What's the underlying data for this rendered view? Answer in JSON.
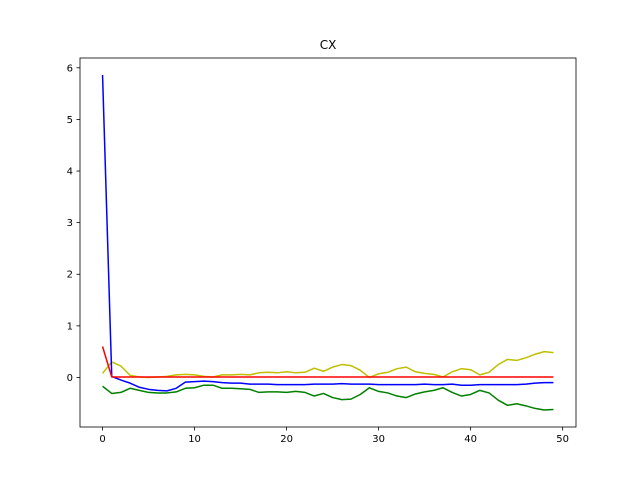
{
  "chart_data": {
    "type": "line",
    "title": "CX",
    "xlabel": "",
    "ylabel": "",
    "xlim": [
      -2.45,
      51.45
    ],
    "ylim": [
      -0.96,
      6.19
    ],
    "x_ticks": [
      0,
      10,
      20,
      30,
      40,
      50
    ],
    "y_ticks": [
      0,
      1,
      2,
      3,
      4,
      5,
      6
    ],
    "grid": false,
    "series": [
      {
        "color": "#bfbf00",
        "x": [
          0,
          1,
          2,
          3,
          4,
          5,
          6,
          7,
          8,
          9,
          10,
          11,
          12,
          13,
          14,
          15,
          16,
          17,
          18,
          19,
          20,
          21,
          22,
          23,
          24,
          25,
          26,
          27,
          28,
          29,
          30,
          31,
          32,
          33,
          34,
          35,
          36,
          37,
          38,
          39,
          40,
          41,
          42,
          43,
          44,
          45,
          46,
          47,
          48,
          49
        ],
        "values": [
          0.08,
          0.3,
          0.22,
          0.04,
          0.01,
          0.0,
          0.01,
          0.02,
          0.05,
          0.06,
          0.05,
          0.02,
          0.01,
          0.05,
          0.05,
          0.06,
          0.05,
          0.09,
          0.1,
          0.09,
          0.11,
          0.09,
          0.1,
          0.18,
          0.12,
          0.2,
          0.25,
          0.23,
          0.14,
          0.0,
          0.07,
          0.1,
          0.17,
          0.2,
          0.11,
          0.08,
          0.06,
          0.01,
          0.11,
          0.17,
          0.15,
          0.05,
          0.1,
          0.25,
          0.35,
          0.33,
          0.38,
          0.45,
          0.5,
          0.48
        ]
      },
      {
        "color": "#008000",
        "x": [
          0,
          1,
          2,
          3,
          4,
          5,
          6,
          7,
          8,
          9,
          10,
          11,
          12,
          13,
          14,
          15,
          16,
          17,
          18,
          19,
          20,
          21,
          22,
          23,
          24,
          25,
          26,
          27,
          28,
          29,
          30,
          31,
          32,
          33,
          34,
          35,
          36,
          37,
          38,
          39,
          40,
          41,
          42,
          43,
          44,
          45,
          46,
          47,
          48,
          49
        ],
        "values": [
          -0.17,
          -0.31,
          -0.29,
          -0.21,
          -0.25,
          -0.29,
          -0.3,
          -0.3,
          -0.28,
          -0.21,
          -0.2,
          -0.15,
          -0.15,
          -0.21,
          -0.21,
          -0.22,
          -0.23,
          -0.29,
          -0.28,
          -0.28,
          -0.29,
          -0.27,
          -0.29,
          -0.36,
          -0.31,
          -0.39,
          -0.43,
          -0.42,
          -0.33,
          -0.2,
          -0.27,
          -0.3,
          -0.36,
          -0.39,
          -0.32,
          -0.28,
          -0.25,
          -0.2,
          -0.29,
          -0.36,
          -0.33,
          -0.25,
          -0.3,
          -0.44,
          -0.54,
          -0.51,
          -0.55,
          -0.6,
          -0.63,
          -0.62
        ]
      },
      {
        "color": "#0000ff",
        "x": [
          0,
          1,
          2,
          3,
          4,
          5,
          6,
          7,
          8,
          9,
          10,
          11,
          12,
          13,
          14,
          15,
          16,
          17,
          18,
          19,
          20,
          21,
          22,
          23,
          24,
          25,
          26,
          27,
          28,
          29,
          30,
          31,
          32,
          33,
          34,
          35,
          36,
          37,
          38,
          39,
          40,
          41,
          42,
          43,
          44,
          45,
          46,
          47,
          48,
          49
        ],
        "values": [
          5.86,
          0.02,
          -0.05,
          -0.11,
          -0.19,
          -0.23,
          -0.25,
          -0.26,
          -0.21,
          -0.09,
          -0.08,
          -0.07,
          -0.08,
          -0.1,
          -0.11,
          -0.11,
          -0.13,
          -0.13,
          -0.13,
          -0.14,
          -0.14,
          -0.14,
          -0.14,
          -0.13,
          -0.13,
          -0.13,
          -0.12,
          -0.13,
          -0.13,
          -0.13,
          -0.14,
          -0.14,
          -0.14,
          -0.14,
          -0.14,
          -0.13,
          -0.14,
          -0.14,
          -0.13,
          -0.15,
          -0.15,
          -0.14,
          -0.14,
          -0.14,
          -0.14,
          -0.14,
          -0.13,
          -0.11,
          -0.1,
          -0.1
        ]
      },
      {
        "color": "#ff0000",
        "x": [
          0,
          1,
          2,
          3,
          4,
          5,
          6,
          7,
          8,
          9,
          10,
          11,
          12,
          13,
          14,
          15,
          16,
          17,
          18,
          19,
          20,
          21,
          22,
          23,
          24,
          25,
          26,
          27,
          28,
          29,
          30,
          31,
          32,
          33,
          34,
          35,
          36,
          37,
          38,
          39,
          40,
          41,
          42,
          43,
          44,
          45,
          46,
          47,
          48,
          49
        ],
        "values": [
          0.6,
          0.01,
          0.01,
          0.01,
          0.01,
          0.01,
          0.01,
          0.01,
          0.01,
          0.01,
          0.01,
          0.01,
          0.01,
          0.01,
          0.01,
          0.01,
          0.01,
          0.01,
          0.01,
          0.01,
          0.01,
          0.01,
          0.01,
          0.01,
          0.01,
          0.01,
          0.01,
          0.01,
          0.01,
          0.01,
          0.01,
          0.01,
          0.01,
          0.01,
          0.01,
          0.01,
          0.01,
          0.01,
          0.01,
          0.01,
          0.01,
          0.01,
          0.01,
          0.01,
          0.01,
          0.01,
          0.01,
          0.01,
          0.01,
          0.01
        ]
      }
    ]
  }
}
